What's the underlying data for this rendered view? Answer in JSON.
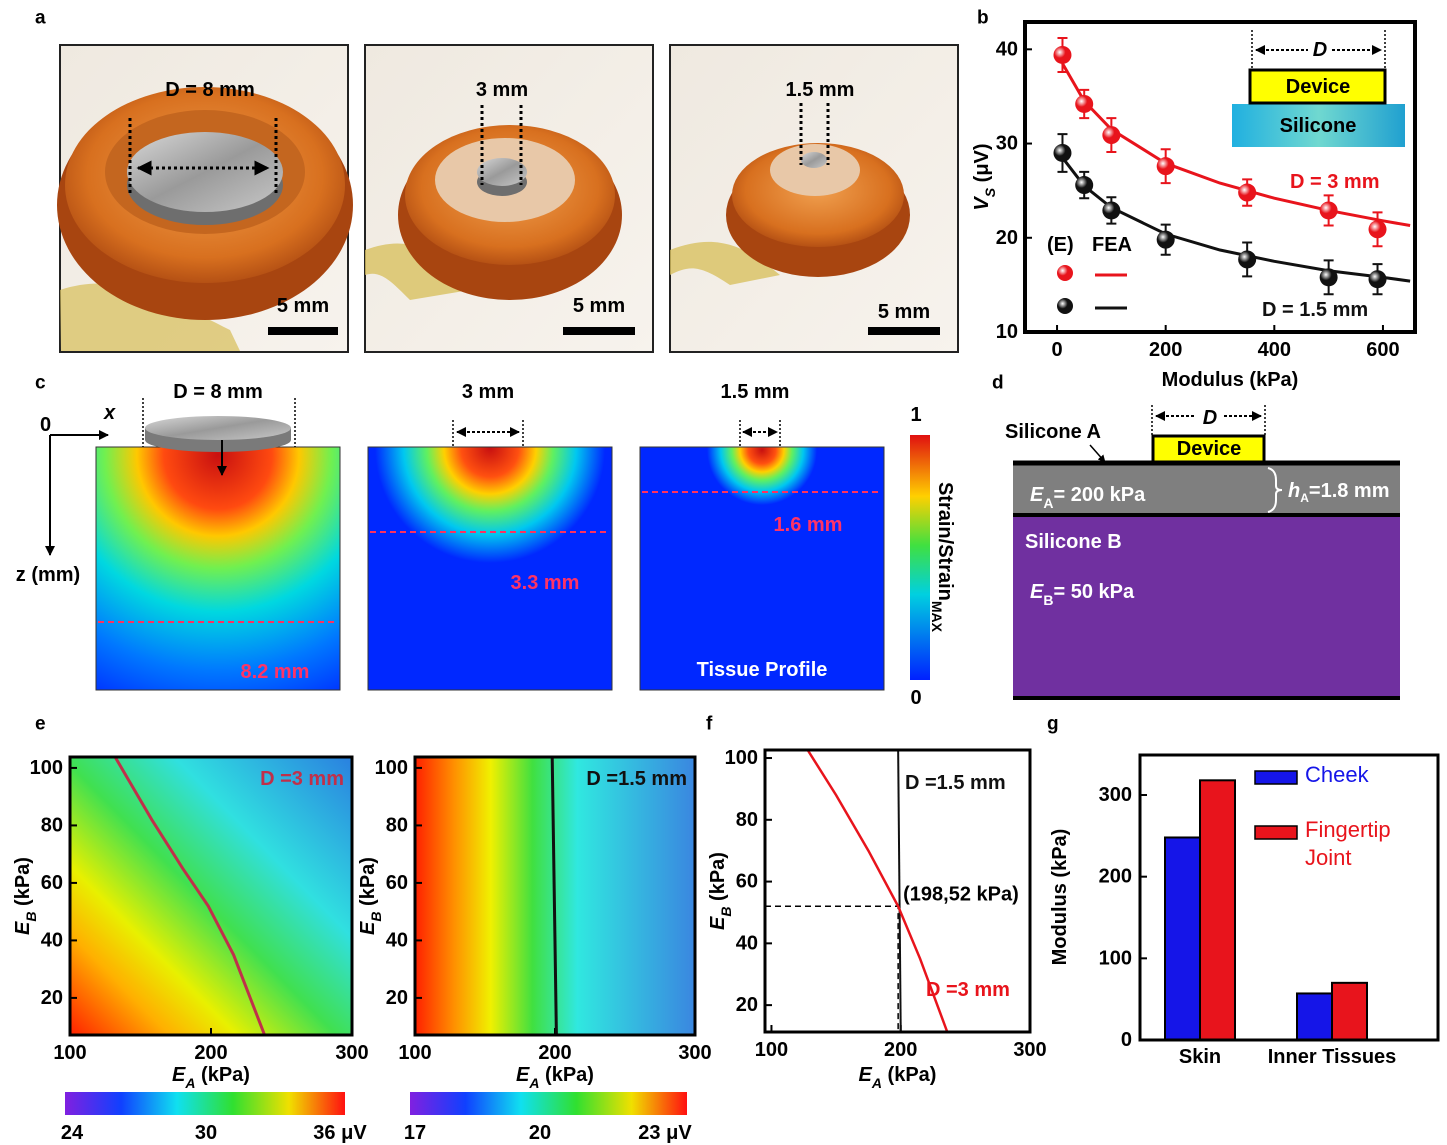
{
  "figure": {
    "panel_labels": [
      "a",
      "b",
      "c",
      "d",
      "e",
      "f",
      "g"
    ],
    "a": [
      {
        "caption": "D = 8 mm",
        "scale_bar": "5 mm"
      },
      {
        "caption": "3 mm",
        "scale_bar": "5 mm"
      },
      {
        "caption": "1.5 mm",
        "scale_bar": "5 mm"
      }
    ],
    "c": {
      "maps": [
        {
          "caption": "D  = 8 mm",
          "depth": "8.2 mm"
        },
        {
          "caption": "3 mm",
          "depth": "3.3 mm"
        },
        {
          "caption": "1.5 mm",
          "depth": "1.6 mm",
          "note": "Tissue Profile"
        }
      ],
      "origin": "0",
      "x_axis": "x",
      "z_axis": "z (mm)",
      "colorbar_ticks": [
        0,
        1
      ],
      "colorbar_label": [
        "Strain/Strain",
        "MAX"
      ]
    },
    "d": {
      "silicone_a": "Silicone A",
      "device": "Device",
      "d": "D",
      "ea": [
        "E",
        "A",
        "= 200 kPa"
      ],
      "ha": [
        "h",
        "A",
        "=1.8 mm"
      ],
      "silicone_b": "Silicone B",
      "eb": [
        "E",
        "B",
        "= 50 kPa"
      ]
    }
  },
  "chart_data": [
    {
      "type": "scatter",
      "xlabel": "Modulus (kPa)",
      "ylabel": [
        "V",
        "S",
        " (μV)"
      ],
      "xlim": [
        -59,
        659
      ],
      "ylim": [
        10,
        42.9
      ],
      "xticks": [
        0,
        200,
        400,
        600
      ],
      "yticks": [
        10,
        20,
        30,
        40
      ],
      "legend_headers": [
        "(E)",
        "FEA"
      ],
      "inset": {
        "d": "D",
        "device": "Device",
        "silicone": "Silicone"
      },
      "series": [
        {
          "name": "D = 3 mm",
          "color": "#e8141c",
          "x": [
            10,
            50,
            100,
            200,
            350,
            500,
            590
          ],
          "values": [
            39.4,
            34.2,
            30.9,
            27.6,
            24.8,
            22.9,
            20.9
          ],
          "errors": [
            1.8,
            1.5,
            1.8,
            1.8,
            1.4,
            1.6,
            1.8
          ],
          "fit_x": [
            10,
            50,
            100,
            200,
            300,
            400,
            500,
            600,
            650
          ],
          "fit_values": [
            38.5,
            34.5,
            31.5,
            27.9,
            25.8,
            24.2,
            22.9,
            21.8,
            21.3
          ]
        },
        {
          "name": "D = 1.5 mm",
          "color": "#111111",
          "x": [
            10,
            50,
            100,
            200,
            350,
            500,
            590
          ],
          "values": [
            29,
            25.6,
            22.9,
            19.8,
            17.7,
            15.8,
            15.6
          ],
          "errors": [
            2,
            1.4,
            1.4,
            1.6,
            1.8,
            1.8,
            1.6
          ],
          "fit_x": [
            10,
            50,
            100,
            200,
            300,
            400,
            500,
            600,
            650
          ],
          "fit_values": [
            28.5,
            25.5,
            23.2,
            20.4,
            18.7,
            17.5,
            16.5,
            15.8,
            15.4
          ]
        }
      ]
    },
    {
      "type": "heatmap",
      "xlabel": [
        "E",
        "A",
        " (kPa)"
      ],
      "ylabel": [
        "E",
        "B",
        " (kPa)"
      ],
      "xlim": [
        100,
        300
      ],
      "ylim": [
        7.1,
        103.8
      ],
      "xticks": [
        100,
        200,
        300
      ],
      "yticks": [
        20,
        40,
        60,
        80,
        100
      ],
      "colorbar": {
        "clim": [
          24,
          36
        ],
        "ticks": [
          24,
          30,
          {
            "value": 36,
            "label": "36 μV"
          }
        ]
      },
      "series": [
        {
          "name": "D =3 mm",
          "color": "#c0304a",
          "x": [
            132,
            158,
            180,
            198,
            216,
            238
          ],
          "values": [
            103.8,
            82,
            65,
            52,
            35,
            7.1
          ]
        }
      ]
    },
    {
      "type": "heatmap",
      "xlabel": [
        "E",
        "A",
        " (kPa)"
      ],
      "ylabel": [
        "E",
        "B",
        " (kPa)"
      ],
      "xlim": [
        100,
        300
      ],
      "ylim": [
        7.1,
        103.8
      ],
      "xticks": [
        100,
        200,
        300
      ],
      "yticks": [
        20,
        40,
        60,
        80,
        100
      ],
      "colorbar": {
        "clim": [
          17,
          23
        ],
        "ticks": [
          17,
          20,
          {
            "value": 23,
            "label": "23 μV"
          }
        ]
      },
      "series": [
        {
          "name": "D =1.5 mm",
          "color": "#111111",
          "x": [
            198,
            201
          ],
          "values": [
            103.8,
            7.1
          ]
        }
      ]
    },
    {
      "type": "line",
      "xlabel": [
        "E",
        "A",
        " (kPa)"
      ],
      "ylabel": [
        "E",
        "B",
        " (kPa)"
      ],
      "xlim": [
        95,
        300
      ],
      "ylim": [
        11.3,
        102.6
      ],
      "xticks": [
        100,
        200,
        300
      ],
      "yticks": [
        20,
        40,
        60,
        80,
        100
      ],
      "series": [
        {
          "name": "D =1.5 mm",
          "color": "#111111",
          "x": [
            198,
            200
          ],
          "values": [
            102.6,
            11.3
          ]
        },
        {
          "name": "D =3 mm",
          "color": "#e8141c",
          "x": [
            128,
            150,
            175,
            198,
            215,
            236
          ],
          "values": [
            102.6,
            88,
            70,
            52,
            35,
            11.3
          ]
        }
      ],
      "annotation": {
        "x": 198,
        "y": 52,
        "label": "(198,52 kPa)"
      }
    },
    {
      "type": "bar",
      "ylabel": "Modulus (kPa)",
      "categories": [
        "Skin",
        "Inner Tissues"
      ],
      "ylim": [
        0,
        349
      ],
      "yticks": [
        0,
        100,
        200,
        300
      ],
      "series": [
        {
          "name": "Cheek",
          "color": "#1515e8",
          "values": [
            248,
            57
          ]
        },
        {
          "name": "Fingertip Joint",
          "color": "#e8141c",
          "values": [
            318,
            70
          ]
        }
      ]
    }
  ]
}
